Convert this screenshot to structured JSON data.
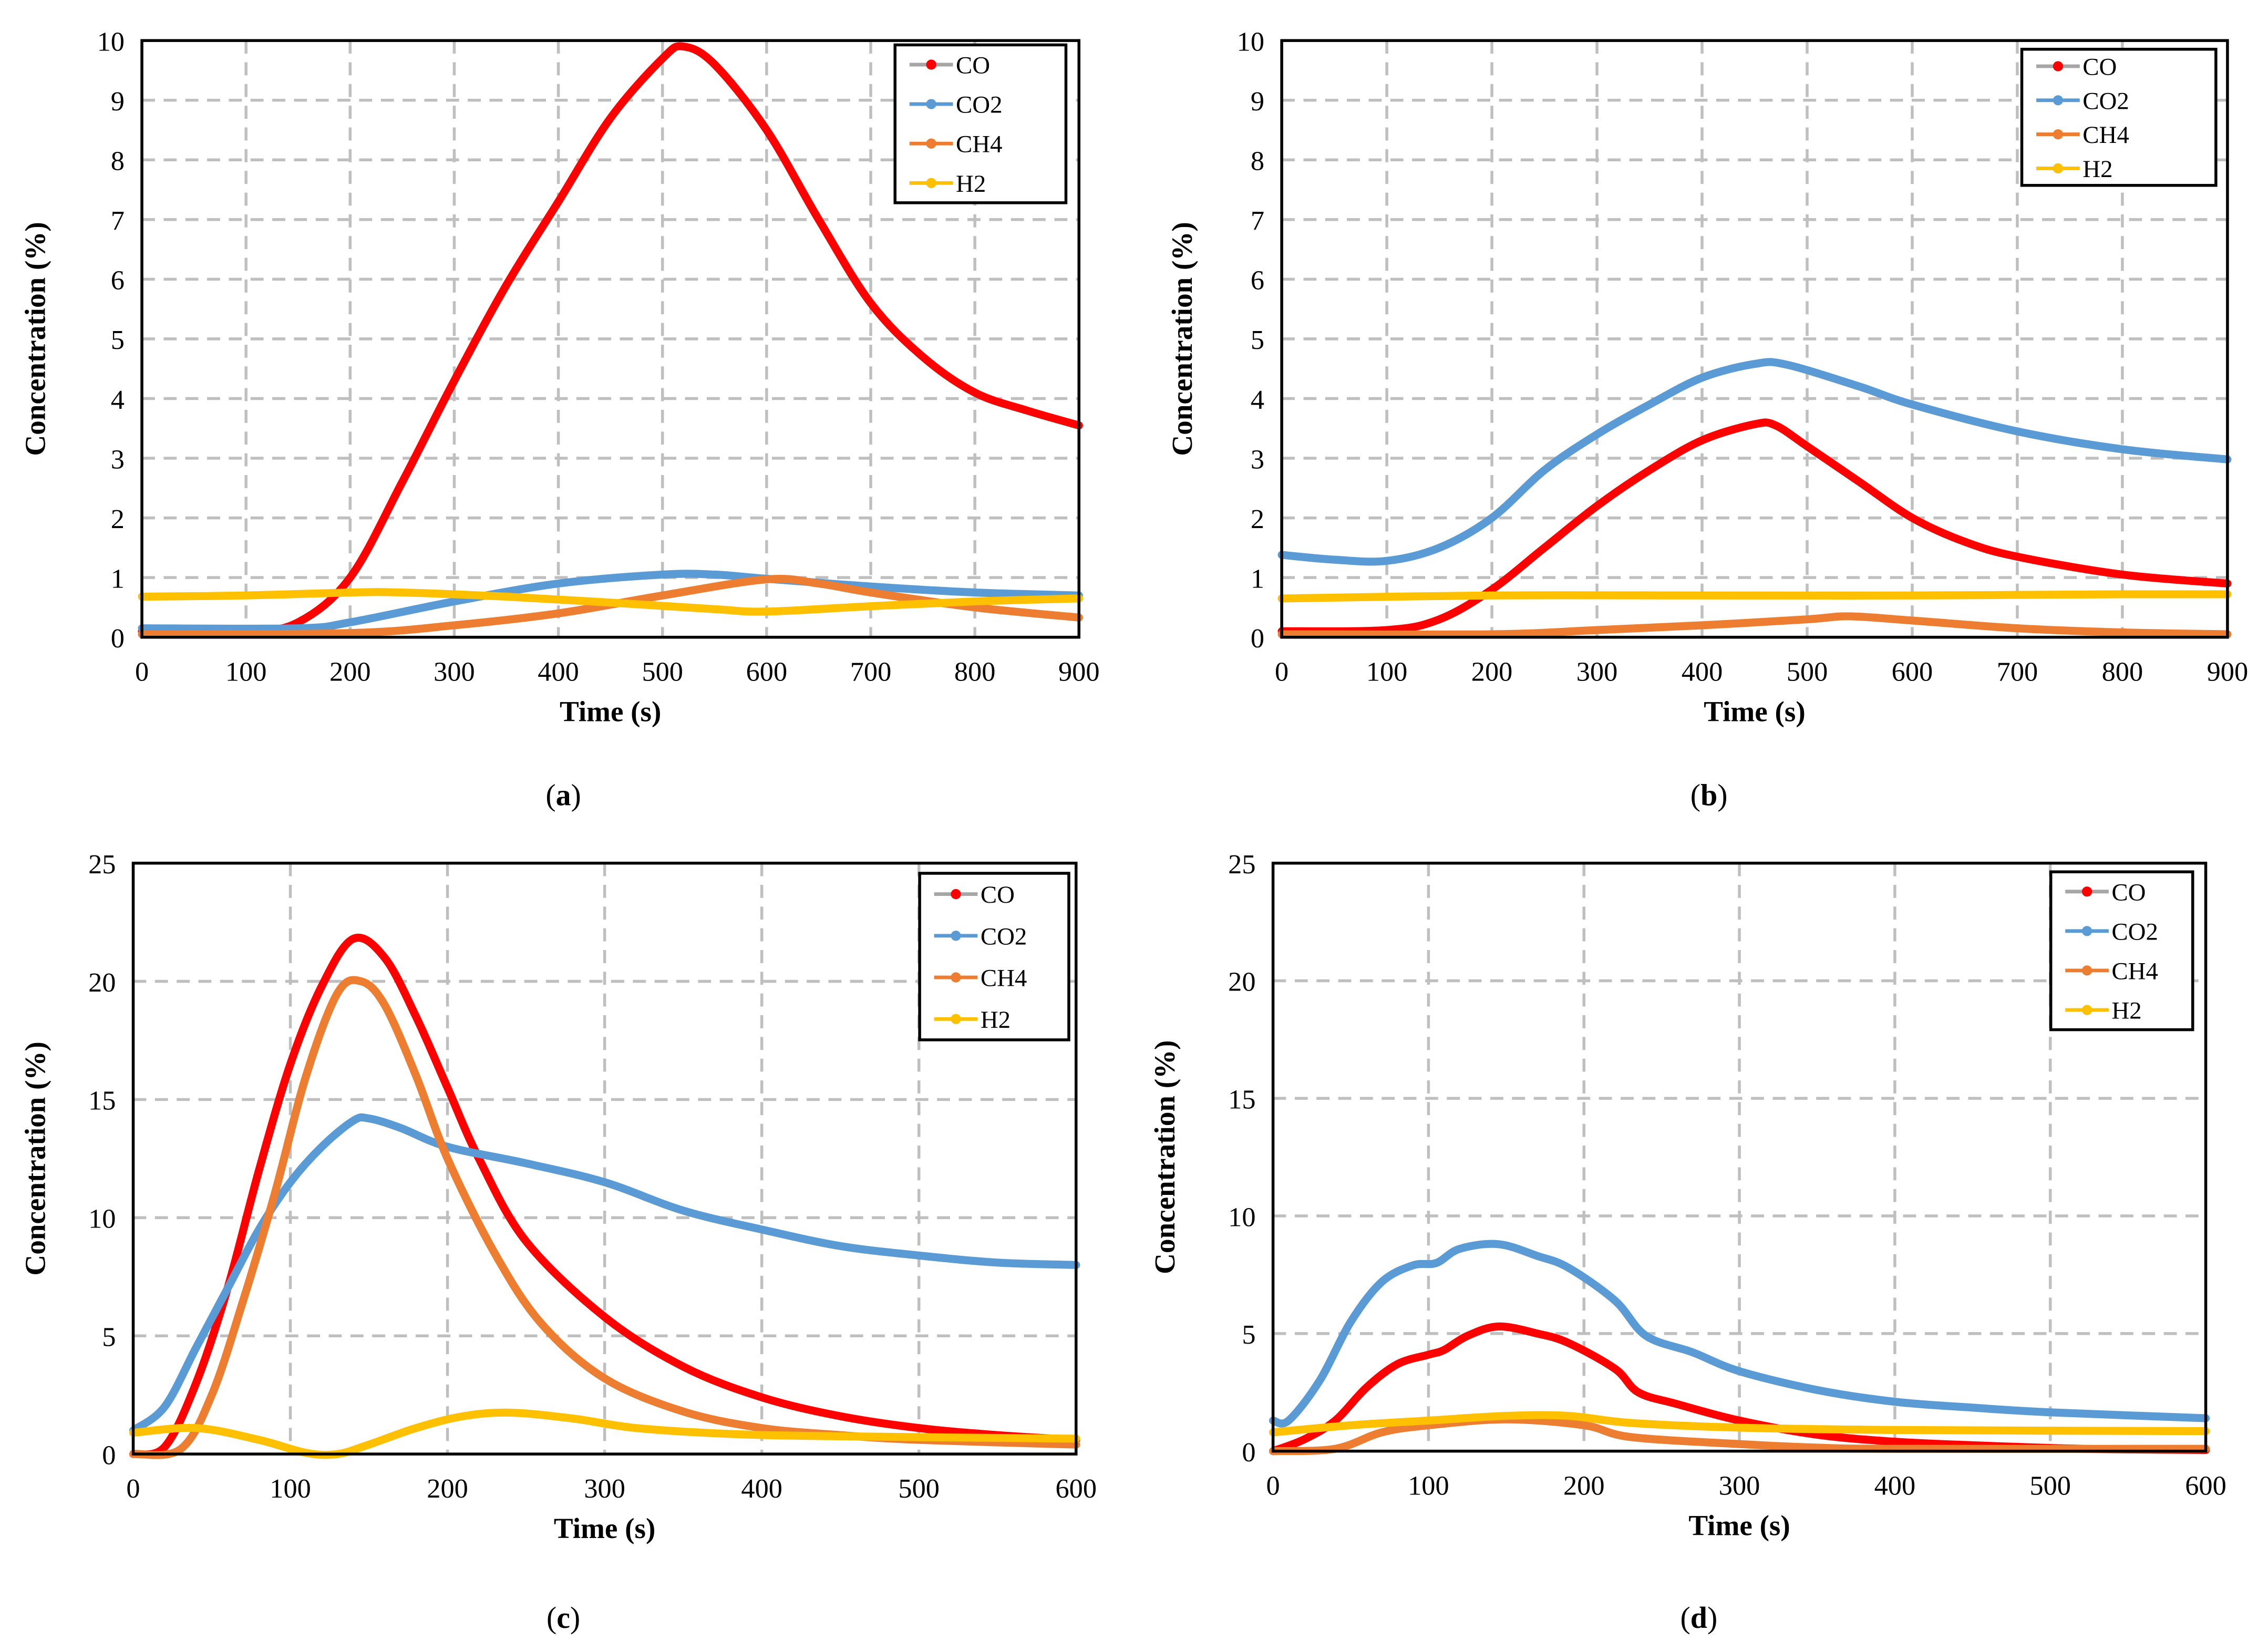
{
  "colors": {
    "CO": "#ff0000",
    "CO2": "#5b9bd5",
    "CH4": "#ed7d31",
    "H2": "#ffc000"
  },
  "chart_data": [
    {
      "type": "line",
      "caption_letter": "a",
      "xlabel": "Time (s)",
      "ylabel": "Concentration (%)",
      "xlim": [
        0,
        900
      ],
      "ylim": [
        0,
        10
      ],
      "xticks": [
        0,
        100,
        200,
        300,
        400,
        500,
        600,
        700,
        800,
        900
      ],
      "yticks": [
        0,
        1,
        2,
        3,
        4,
        5,
        6,
        7,
        8,
        9,
        10
      ],
      "grid": true,
      "legend_position": "top-right",
      "series": [
        {
          "name": "CO",
          "points": [
            [
              0,
              0.1
            ],
            [
              100,
              0.1
            ],
            [
              150,
              0.25
            ],
            [
              200,
              1.0
            ],
            [
              250,
              2.6
            ],
            [
              300,
              4.3
            ],
            [
              350,
              5.9
            ],
            [
              400,
              7.3
            ],
            [
              450,
              8.7
            ],
            [
              500,
              9.7
            ],
            [
              520,
              9.9
            ],
            [
              550,
              9.6
            ],
            [
              600,
              8.5
            ],
            [
              650,
              7.0
            ],
            [
              700,
              5.6
            ],
            [
              750,
              4.7
            ],
            [
              800,
              4.1
            ],
            [
              850,
              3.8
            ],
            [
              900,
              3.55
            ]
          ]
        },
        {
          "name": "CO2",
          "points": [
            [
              0,
              0.15
            ],
            [
              150,
              0.15
            ],
            [
              200,
              0.25
            ],
            [
              300,
              0.6
            ],
            [
              400,
              0.9
            ],
            [
              500,
              1.05
            ],
            [
              550,
              1.05
            ],
            [
              600,
              0.98
            ],
            [
              700,
              0.85
            ],
            [
              800,
              0.75
            ],
            [
              900,
              0.7
            ]
          ]
        },
        {
          "name": "CH4",
          "points": [
            [
              0,
              0.05
            ],
            [
              200,
              0.07
            ],
            [
              300,
              0.2
            ],
            [
              400,
              0.4
            ],
            [
              500,
              0.7
            ],
            [
              600,
              0.97
            ],
            [
              650,
              0.9
            ],
            [
              700,
              0.75
            ],
            [
              800,
              0.5
            ],
            [
              900,
              0.33
            ]
          ]
        },
        {
          "name": "H2",
          "points": [
            [
              0,
              0.68
            ],
            [
              100,
              0.7
            ],
            [
              200,
              0.75
            ],
            [
              250,
              0.75
            ],
            [
              350,
              0.68
            ],
            [
              450,
              0.58
            ],
            [
              550,
              0.47
            ],
            [
              600,
              0.43
            ],
            [
              700,
              0.52
            ],
            [
              800,
              0.6
            ],
            [
              900,
              0.65
            ]
          ]
        }
      ]
    },
    {
      "type": "line",
      "caption_letter": "b",
      "xlabel": "Time (s)",
      "ylabel": "Concentration (%)",
      "xlim": [
        0,
        900
      ],
      "ylim": [
        0,
        10
      ],
      "xticks": [
        0,
        100,
        200,
        300,
        400,
        500,
        600,
        700,
        800,
        900
      ],
      "yticks": [
        0,
        1,
        2,
        3,
        4,
        5,
        6,
        7,
        8,
        9,
        10
      ],
      "grid": true,
      "legend_position": "top-right",
      "series": [
        {
          "name": "CO",
          "points": [
            [
              0,
              0.1
            ],
            [
              100,
              0.12
            ],
            [
              150,
              0.3
            ],
            [
              200,
              0.8
            ],
            [
              250,
              1.5
            ],
            [
              300,
              2.2
            ],
            [
              350,
              2.8
            ],
            [
              400,
              3.3
            ],
            [
              450,
              3.57
            ],
            [
              470,
              3.55
            ],
            [
              500,
              3.2
            ],
            [
              550,
              2.6
            ],
            [
              600,
              2.0
            ],
            [
              650,
              1.6
            ],
            [
              700,
              1.35
            ],
            [
              800,
              1.05
            ],
            [
              900,
              0.9
            ]
          ]
        },
        {
          "name": "CO2",
          "points": [
            [
              0,
              1.38
            ],
            [
              50,
              1.3
            ],
            [
              100,
              1.28
            ],
            [
              150,
              1.5
            ],
            [
              200,
              2.0
            ],
            [
              250,
              2.8
            ],
            [
              300,
              3.4
            ],
            [
              350,
              3.9
            ],
            [
              400,
              4.35
            ],
            [
              450,
              4.58
            ],
            [
              480,
              4.57
            ],
            [
              550,
              4.2
            ],
            [
              600,
              3.9
            ],
            [
              700,
              3.45
            ],
            [
              800,
              3.15
            ],
            [
              900,
              2.98
            ]
          ]
        },
        {
          "name": "CH4",
          "points": [
            [
              0,
              0.05
            ],
            [
              200,
              0.05
            ],
            [
              300,
              0.12
            ],
            [
              400,
              0.2
            ],
            [
              500,
              0.3
            ],
            [
              540,
              0.35
            ],
            [
              600,
              0.28
            ],
            [
              700,
              0.15
            ],
            [
              800,
              0.08
            ],
            [
              900,
              0.05
            ]
          ]
        },
        {
          "name": "H2",
          "points": [
            [
              0,
              0.65
            ],
            [
              200,
              0.7
            ],
            [
              400,
              0.7
            ],
            [
              600,
              0.7
            ],
            [
              800,
              0.72
            ],
            [
              900,
              0.72
            ]
          ]
        }
      ]
    },
    {
      "type": "line",
      "caption_letter": "c",
      "xlabel": "Time (s)",
      "ylabel": "Concentration (%)",
      "xlim": [
        0,
        600
      ],
      "ylim": [
        0,
        25
      ],
      "xticks": [
        0,
        100,
        200,
        300,
        400,
        500,
        600
      ],
      "yticks": [
        0,
        5,
        10,
        15,
        20,
        25
      ],
      "grid": true,
      "legend_position": "top-right",
      "series": [
        {
          "name": "CO",
          "points": [
            [
              0,
              0
            ],
            [
              20,
              0.3
            ],
            [
              40,
              3
            ],
            [
              60,
              7
            ],
            [
              80,
              12
            ],
            [
              100,
              16.5
            ],
            [
              120,
              19.8
            ],
            [
              140,
              21.8
            ],
            [
              160,
              21
            ],
            [
              180,
              18.5
            ],
            [
              200,
              15.5
            ],
            [
              220,
              12.5
            ],
            [
              250,
              9
            ],
            [
              300,
              5.8
            ],
            [
              350,
              3.7
            ],
            [
              400,
              2.4
            ],
            [
              450,
              1.6
            ],
            [
              500,
              1.1
            ],
            [
              550,
              0.8
            ],
            [
              600,
              0.6
            ]
          ]
        },
        {
          "name": "CO2",
          "points": [
            [
              0,
              1
            ],
            [
              20,
              2
            ],
            [
              40,
              4.5
            ],
            [
              60,
              7
            ],
            [
              80,
              9.5
            ],
            [
              100,
              11.5
            ],
            [
              120,
              13
            ],
            [
              140,
              14.1
            ],
            [
              150,
              14.2
            ],
            [
              170,
              13.8
            ],
            [
              200,
              13
            ],
            [
              250,
              12.3
            ],
            [
              300,
              11.5
            ],
            [
              350,
              10.3
            ],
            [
              400,
              9.5
            ],
            [
              450,
              8.8
            ],
            [
              500,
              8.4
            ],
            [
              550,
              8.1
            ],
            [
              600,
              8
            ]
          ]
        },
        {
          "name": "CH4",
          "points": [
            [
              0,
              0
            ],
            [
              30,
              0.2
            ],
            [
              50,
              2.5
            ],
            [
              70,
              6.5
            ],
            [
              90,
              11
            ],
            [
              110,
              16
            ],
            [
              130,
              19.5
            ],
            [
              145,
              20
            ],
            [
              160,
              19
            ],
            [
              180,
              16
            ],
            [
              200,
              12.5
            ],
            [
              230,
              8.5
            ],
            [
              260,
              5.5
            ],
            [
              300,
              3.2
            ],
            [
              350,
              1.8
            ],
            [
              400,
              1.1
            ],
            [
              450,
              0.8
            ],
            [
              500,
              0.6
            ],
            [
              600,
              0.4
            ]
          ]
        },
        {
          "name": "H2",
          "points": [
            [
              0,
              0.9
            ],
            [
              40,
              1.1
            ],
            [
              80,
              0.6
            ],
            [
              110,
              0.05
            ],
            [
              130,
              0
            ],
            [
              150,
              0.4
            ],
            [
              180,
              1.1
            ],
            [
              210,
              1.6
            ],
            [
              240,
              1.75
            ],
            [
              280,
              1.5
            ],
            [
              320,
              1.1
            ],
            [
              380,
              0.85
            ],
            [
              450,
              0.75
            ],
            [
              600,
              0.65
            ]
          ]
        }
      ]
    },
    {
      "type": "line",
      "caption_letter": "d",
      "xlabel": "Time (s)",
      "ylabel": "Concentration (%)",
      "xlim": [
        0,
        600
      ],
      "ylim": [
        0,
        25
      ],
      "xticks": [
        0,
        100,
        200,
        300,
        400,
        500,
        600
      ],
      "yticks": [
        0,
        5,
        10,
        15,
        20,
        25
      ],
      "grid": true,
      "legend_position": "top-right",
      "series": [
        {
          "name": "CO",
          "points": [
            [
              0,
              0
            ],
            [
              20,
              0.5
            ],
            [
              40,
              1.3
            ],
            [
              60,
              2.7
            ],
            [
              80,
              3.7
            ],
            [
              100,
              4.1
            ],
            [
              110,
              4.3
            ],
            [
              125,
              4.9
            ],
            [
              145,
              5.3
            ],
            [
              170,
              5.0
            ],
            [
              190,
              4.6
            ],
            [
              220,
              3.5
            ],
            [
              235,
              2.5
            ],
            [
              260,
              2.0
            ],
            [
              300,
              1.3
            ],
            [
              350,
              0.7
            ],
            [
              400,
              0.4
            ],
            [
              450,
              0.25
            ],
            [
              520,
              0.1
            ],
            [
              600,
              0.05
            ]
          ]
        },
        {
          "name": "CO2",
          "points": [
            [
              0,
              1.3
            ],
            [
              10,
              1.3
            ],
            [
              30,
              3.0
            ],
            [
              50,
              5.5
            ],
            [
              70,
              7.2
            ],
            [
              90,
              7.9
            ],
            [
              105,
              8.0
            ],
            [
              120,
              8.6
            ],
            [
              145,
              8.8
            ],
            [
              170,
              8.3
            ],
            [
              190,
              7.8
            ],
            [
              220,
              6.4
            ],
            [
              240,
              4.9
            ],
            [
              270,
              4.2
            ],
            [
              300,
              3.4
            ],
            [
              350,
              2.6
            ],
            [
              400,
              2.1
            ],
            [
              450,
              1.85
            ],
            [
              500,
              1.65
            ],
            [
              600,
              1.4
            ]
          ]
        },
        {
          "name": "CH4",
          "points": [
            [
              0,
              0
            ],
            [
              40,
              0.1
            ],
            [
              70,
              0.8
            ],
            [
              100,
              1.1
            ],
            [
              150,
              1.35
            ],
            [
              200,
              1.1
            ],
            [
              230,
              0.6
            ],
            [
              300,
              0.3
            ],
            [
              350,
              0.15
            ],
            [
              400,
              0.1
            ],
            [
              600,
              0.1
            ]
          ]
        },
        {
          "name": "H2",
          "points": [
            [
              0,
              0.8
            ],
            [
              50,
              1.1
            ],
            [
              100,
              1.3
            ],
            [
              150,
              1.5
            ],
            [
              190,
              1.5
            ],
            [
              230,
              1.2
            ],
            [
              300,
              1.0
            ],
            [
              400,
              0.9
            ],
            [
              600,
              0.85
            ]
          ]
        }
      ]
    }
  ]
}
